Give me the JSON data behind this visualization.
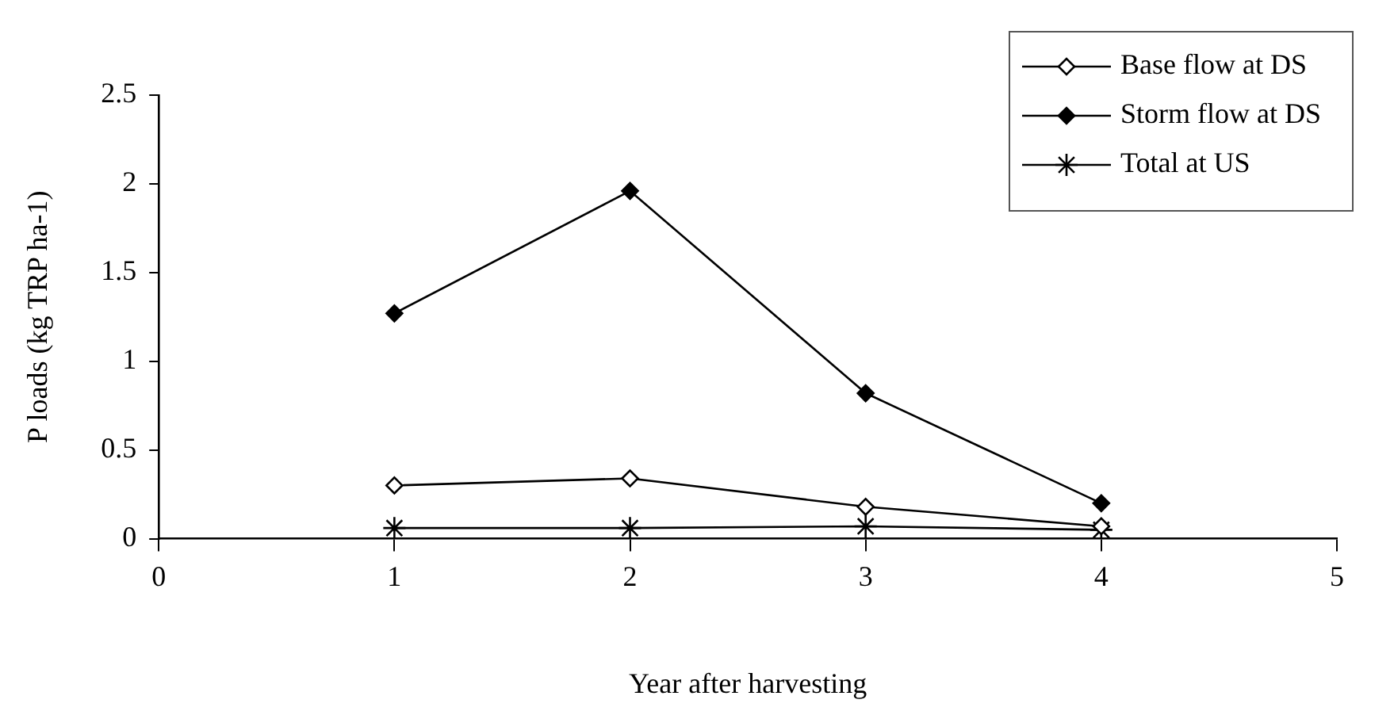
{
  "chart_data": {
    "type": "line",
    "xlabel": "Year after harvesting",
    "ylabel": "P loads (kg TRP ha-1)",
    "x": [
      1,
      2,
      3,
      4
    ],
    "xlim": [
      0,
      5
    ],
    "xticks": [
      0,
      1,
      2,
      3,
      4,
      5
    ],
    "ylim": [
      0,
      2.5
    ],
    "yticks": [
      0,
      0.5,
      1,
      1.5,
      2,
      2.5
    ],
    "grid": false,
    "legend": "top right",
    "line_style": "solid",
    "series": [
      {
        "name": "Base flow at DS",
        "color": "#000000",
        "marker": "diamond",
        "values": [
          0.3,
          0.34,
          0.18,
          0.07
        ]
      },
      {
        "name": "Storm flow at DS",
        "color": "#000000",
        "marker": "diamond",
        "values": [
          1.27,
          1.96,
          0.82,
          0.2
        ]
      },
      {
        "name": "Total at US",
        "color": "#000000",
        "marker": "cross",
        "values": [
          0.06,
          0.06,
          0.07,
          0.05
        ]
      }
    ]
  }
}
